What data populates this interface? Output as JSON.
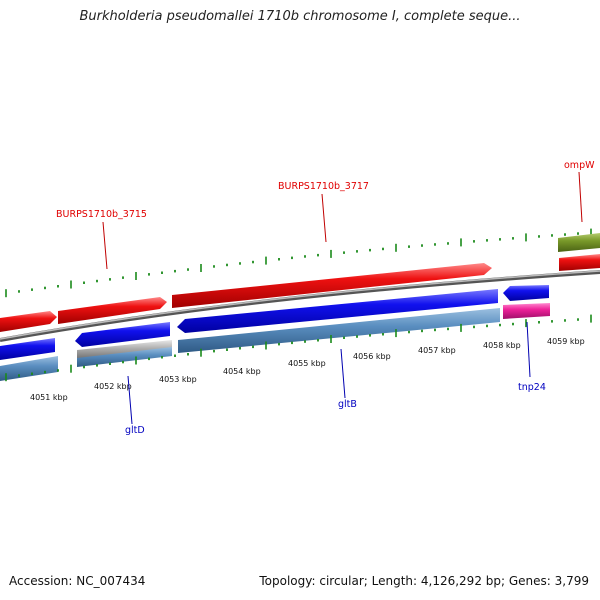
{
  "header": {
    "title": "Burkholderia pseudomallei 1710b chromosome I, complete seque..."
  },
  "footer": {
    "accession": "Accession: NC_007434",
    "topology": "Topology: circular; Length: 4,126,292 bp; Genes: 3,799"
  },
  "scale": {
    "ticks": [
      "4051 kbp",
      "4052 kbp",
      "4053 kbp",
      "4054 kbp",
      "4055 kbp",
      "4056 kbp",
      "4057 kbp",
      "4058 kbp",
      "4059 kbp"
    ]
  },
  "genes": {
    "upper": [
      "BURPS1710b_3715",
      "BURPS1710b_3717",
      "ompW"
    ],
    "lower": [
      "gltD",
      "gltB",
      "tnp24"
    ]
  },
  "colors": {
    "forward_cds": "#ee1111",
    "reverse_cds": "#1111ee",
    "reverse_gene": "#5a8ec0",
    "pseudo": "#b0b0b0",
    "pink_cds": "#ee2299",
    "olive_gene": "#7a9a2a",
    "backbone": "#888888",
    "tick": "#1a8a1a"
  }
}
